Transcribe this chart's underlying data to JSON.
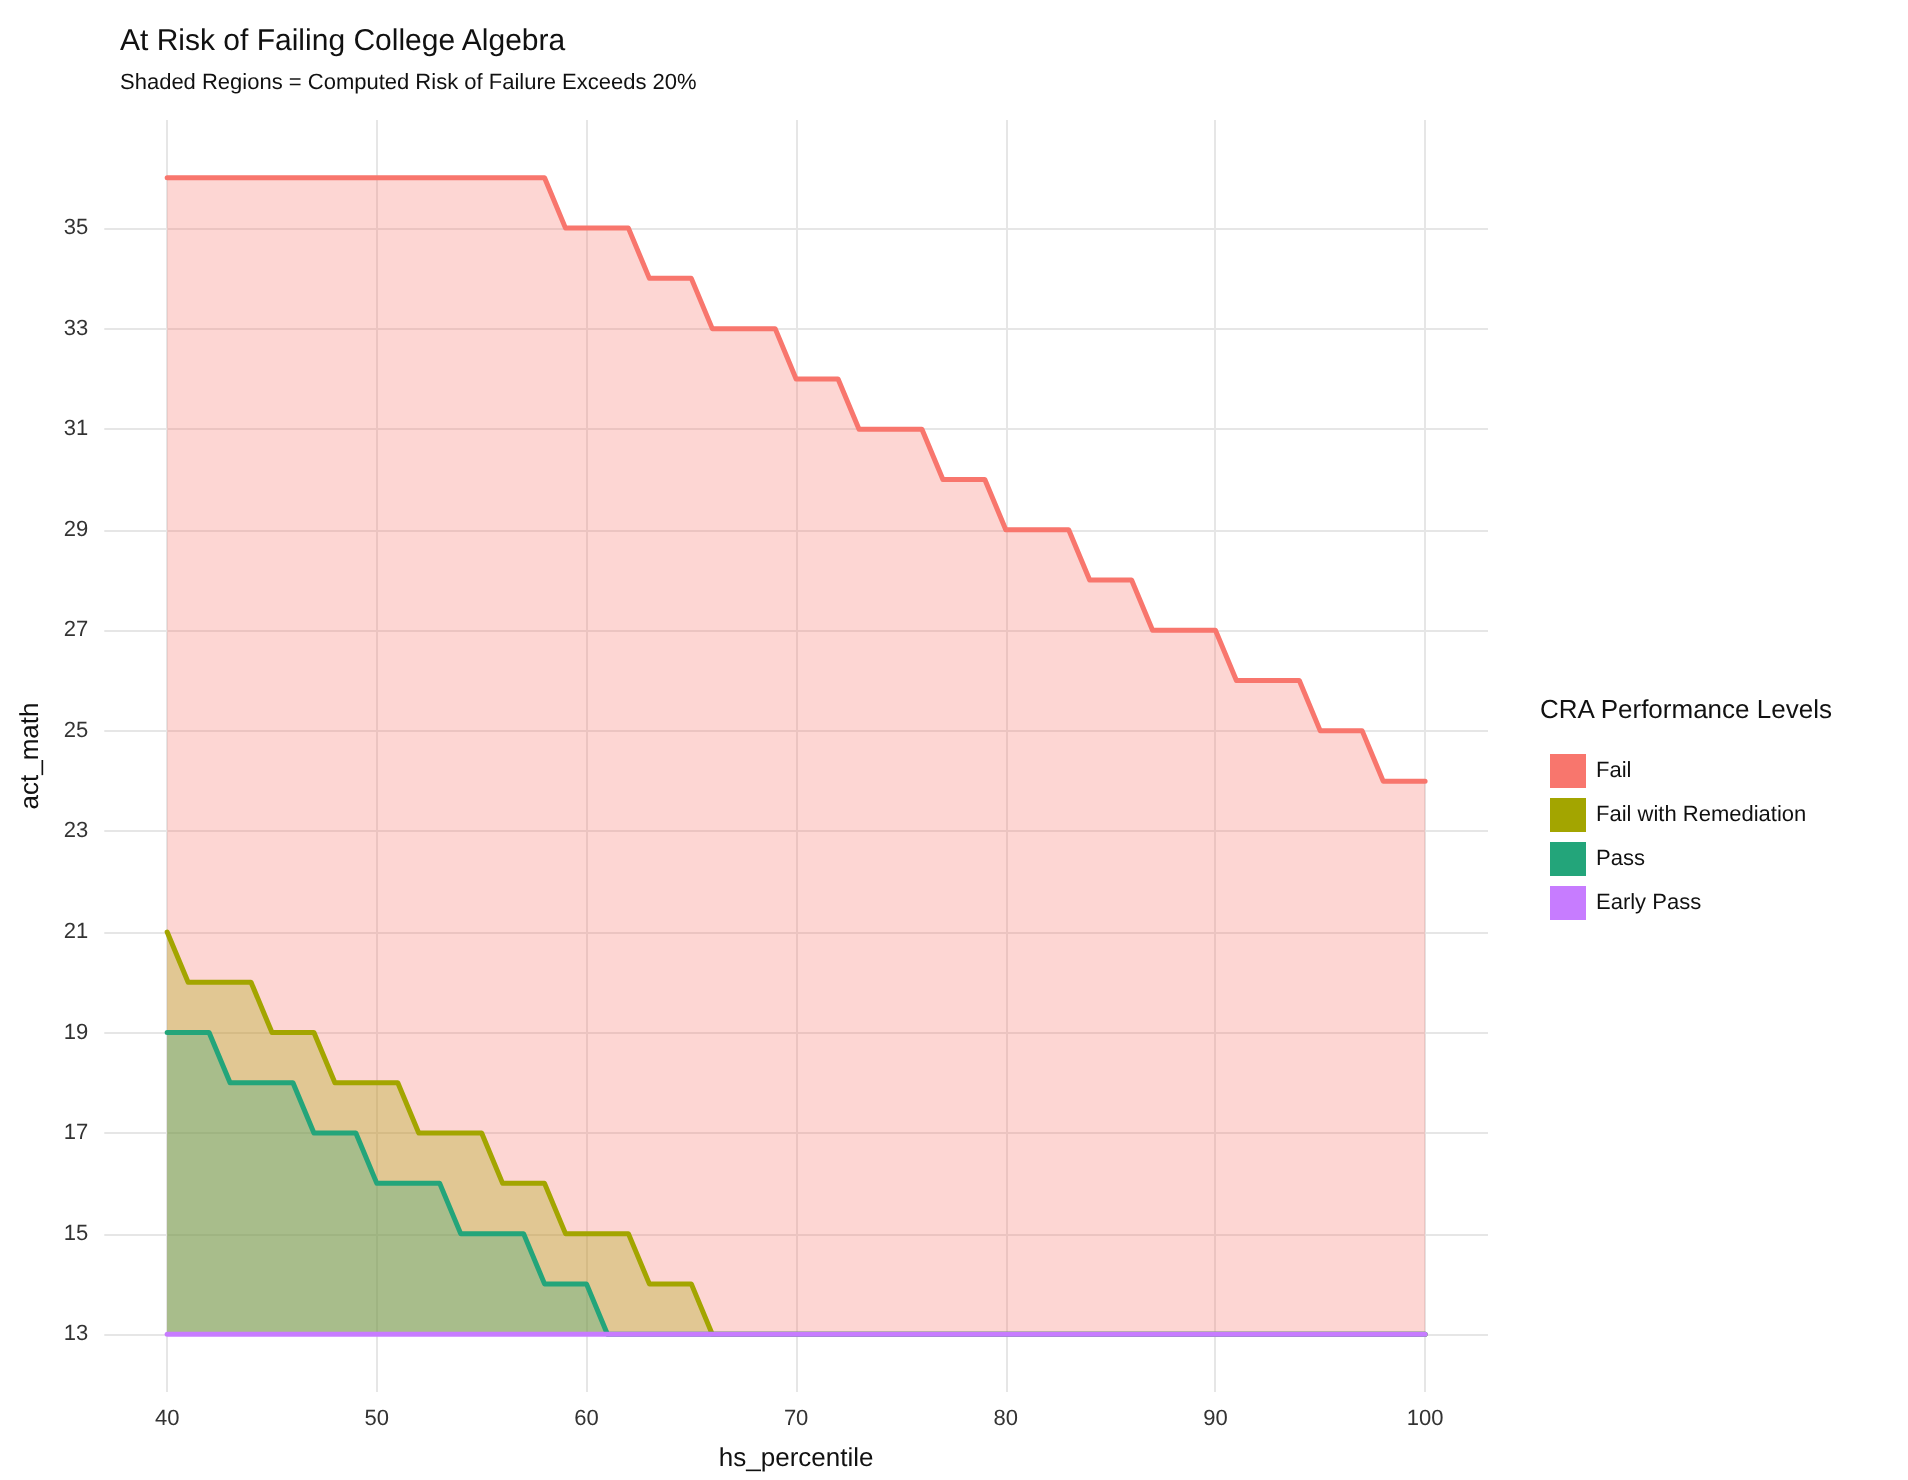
{
  "chart_data": {
    "type": "area",
    "title": "At Risk of Failing College Algebra",
    "subtitle": "Shaded Regions = Computed Risk of Failure Exceeds 20%",
    "xlabel": "hs_percentile",
    "ylabel": "act_math",
    "legend_title": "CRA Performance Levels",
    "x": [
      40,
      41,
      42,
      43,
      44,
      45,
      46,
      47,
      48,
      49,
      50,
      51,
      52,
      53,
      54,
      55,
      56,
      57,
      58,
      59,
      60,
      61,
      62,
      63,
      64,
      65,
      66,
      67,
      68,
      69,
      70,
      71,
      72,
      73,
      74,
      75,
      76,
      77,
      78,
      79,
      80,
      81,
      82,
      83,
      84,
      85,
      86,
      87,
      88,
      89,
      90,
      91,
      92,
      93,
      94,
      95,
      96,
      97,
      98,
      99,
      100
    ],
    "series": [
      {
        "name": "Fail",
        "color": "#f8766d",
        "values": [
          36,
          36,
          36,
          36,
          36,
          36,
          36,
          36,
          36,
          36,
          36,
          36,
          36,
          36,
          36,
          36,
          36,
          36,
          36,
          35,
          35,
          35,
          35,
          34,
          34,
          34,
          33,
          33,
          33,
          33,
          32,
          32,
          32,
          31,
          31,
          31,
          31,
          30,
          30,
          30,
          29,
          29,
          29,
          29,
          28,
          28,
          28,
          27,
          27,
          27,
          27,
          26,
          26,
          26,
          26,
          25,
          25,
          25,
          24,
          24,
          24
        ]
      },
      {
        "name": "Fail with Remediation",
        "color": "#a3a500",
        "values": [
          21,
          20,
          20,
          20,
          20,
          19,
          19,
          19,
          18,
          18,
          18,
          18,
          17,
          17,
          17,
          17,
          16,
          16,
          16,
          15,
          15,
          15,
          15,
          14,
          14,
          14,
          13,
          13,
          13,
          13,
          13,
          13,
          13,
          13,
          13,
          13,
          13,
          13,
          13,
          13,
          13,
          13,
          13,
          13,
          13,
          13,
          13,
          13,
          13,
          13,
          13,
          13,
          13,
          13,
          13,
          13,
          13,
          13,
          13,
          13,
          13
        ]
      },
      {
        "name": "Pass",
        "color": "#23a57a",
        "values": [
          19,
          19,
          19,
          18,
          18,
          18,
          18,
          17,
          17,
          17,
          16,
          16,
          16,
          16,
          15,
          15,
          15,
          15,
          14,
          14,
          14,
          13,
          13,
          13,
          13,
          13,
          13,
          13,
          13,
          13,
          13,
          13,
          13,
          13,
          13,
          13,
          13,
          13,
          13,
          13,
          13,
          13,
          13,
          13,
          13,
          13,
          13,
          13,
          13,
          13,
          13,
          13,
          13,
          13,
          13,
          13,
          13,
          13,
          13,
          13,
          13
        ]
      },
      {
        "name": "Early Pass",
        "type": "line",
        "color": "#c77cff",
        "values": [
          13,
          13,
          13,
          13,
          13,
          13,
          13,
          13,
          13,
          13,
          13,
          13,
          13,
          13,
          13,
          13,
          13,
          13,
          13,
          13,
          13,
          13,
          13,
          13,
          13,
          13,
          13,
          13,
          13,
          13,
          13,
          13,
          13,
          13,
          13,
          13,
          13,
          13,
          13,
          13,
          13,
          13,
          13,
          13,
          13,
          13,
          13,
          13,
          13,
          13,
          13,
          13,
          13,
          13,
          13,
          13,
          13,
          13,
          13,
          13,
          13
        ]
      }
    ],
    "xlim": [
      37,
      103
    ],
    "xticks": [
      40,
      50,
      60,
      70,
      80,
      90,
      100
    ],
    "ylim": [
      11.85,
      37.15
    ],
    "yticks": [
      13,
      15,
      17,
      19,
      21,
      23,
      25,
      27,
      29,
      31,
      33,
      35
    ],
    "grid": true,
    "legend": "right",
    "marker": "none",
    "line_style": "solid"
  }
}
